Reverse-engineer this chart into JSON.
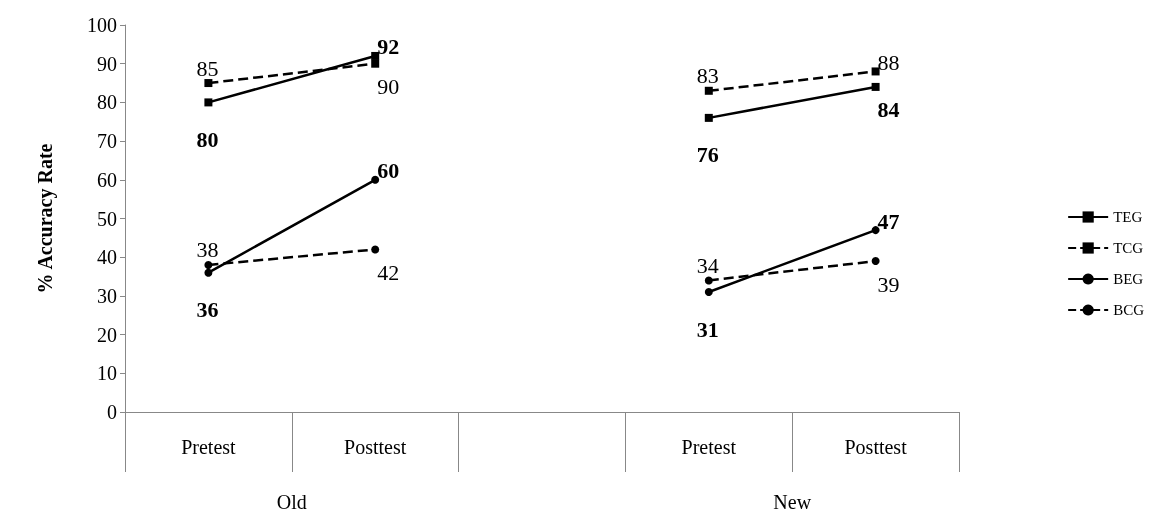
{
  "chart_data": {
    "type": "line",
    "ylabel": "% Accuracy Rate",
    "categories": [
      "Pretest",
      "Posttest",
      null,
      "Pretest",
      "Posttest"
    ],
    "series": [
      {
        "name": "TEG",
        "color": "#000000",
        "marker": "square",
        "line_style": "solid",
        "values": [
          80,
          92,
          null,
          76,
          84
        ]
      },
      {
        "name": "TCG",
        "color": "#000000",
        "marker": "square",
        "line_style": "dashed",
        "values": [
          85,
          90,
          null,
          83,
          88
        ]
      },
      {
        "name": "BEG",
        "color": "#000000",
        "marker": "circle",
        "line_style": "solid",
        "values": [
          36,
          60,
          null,
          31,
          47
        ]
      },
      {
        "name": "BCG",
        "color": "#000000",
        "marker": "circle",
        "line_style": "dashed",
        "values": [
          38,
          42,
          null,
          34,
          39
        ]
      }
    ],
    "ylim": [
      0,
      100
    ],
    "yticks": [
      0,
      10,
      20,
      30,
      40,
      50,
      60,
      70,
      80,
      90,
      100
    ],
    "grid": false,
    "legend": "right",
    "data_labels": true,
    "annotations": [
      "Old",
      "New"
    ]
  }
}
